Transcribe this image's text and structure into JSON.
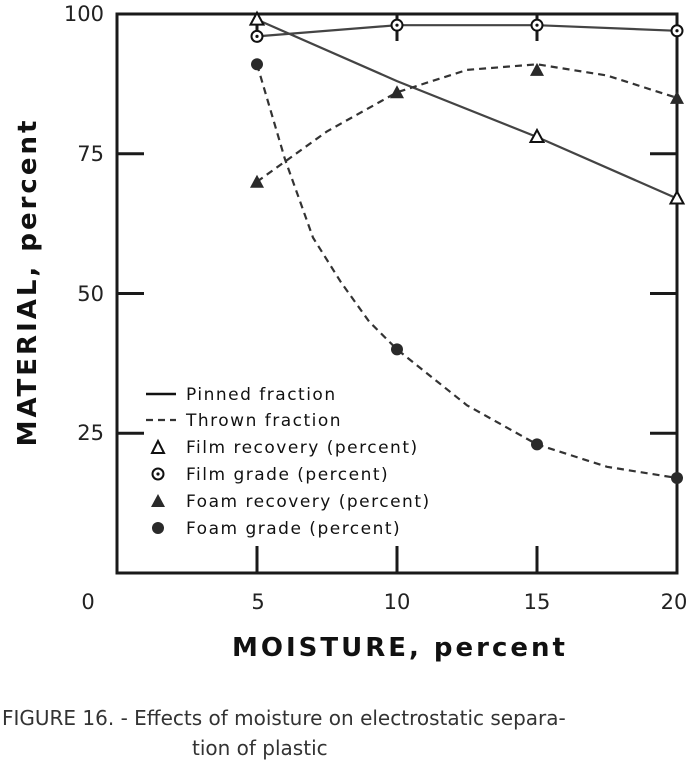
{
  "chart_data": {
    "type": "line",
    "xlabel": "MOISTURE, percent",
    "ylabel": "MATERIAL, percent",
    "xlim": [
      0,
      20
    ],
    "ylim": [
      0,
      100
    ],
    "x_ticks": [
      "0",
      "5",
      "10",
      "15",
      "20"
    ],
    "y_ticks": [
      "100",
      "75",
      "50",
      "25"
    ],
    "grid": false,
    "legend_position": "lower-left",
    "legend": [
      {
        "label": "Pinned fraction",
        "symbol": "solid-line"
      },
      {
        "label": "Thrown fraction",
        "symbol": "dashed-line"
      },
      {
        "label": "Film recovery (percent)",
        "symbol": "open-triangle"
      },
      {
        "label": "Film grade (percent)",
        "symbol": "dotted-circle"
      },
      {
        "label": "Foam recovery (percent)",
        "symbol": "filled-triangle"
      },
      {
        "label": "Foam grade (percent)",
        "symbol": "filled-circle"
      }
    ],
    "series": [
      {
        "name": "Film recovery (percent)",
        "line": "solid",
        "marker": "open-triangle",
        "x": [
          5,
          15,
          20
        ],
        "y": [
          99,
          78,
          67
        ],
        "curve_points": [
          [
            5,
            99
          ],
          [
            10,
            88
          ],
          [
            15,
            78
          ],
          [
            20,
            67
          ]
        ]
      },
      {
        "name": "Film grade (percent)",
        "line": "solid",
        "marker": "dotted-circle",
        "x": [
          5,
          10,
          15,
          20
        ],
        "y": [
          96,
          98,
          98,
          97
        ]
      },
      {
        "name": "Foam recovery (percent)",
        "line": "dashed",
        "marker": "filled-triangle",
        "x": [
          5,
          10,
          15,
          20
        ],
        "y": [
          70,
          86,
          90,
          85
        ],
        "curve_points": [
          [
            5,
            70
          ],
          [
            7.5,
            79
          ],
          [
            10,
            86
          ],
          [
            12.5,
            90
          ],
          [
            15,
            91
          ],
          [
            17.5,
            89
          ],
          [
            20,
            85
          ]
        ]
      },
      {
        "name": "Foam grade (percent)",
        "line": "dashed",
        "marker": "filled-circle",
        "x": [
          5,
          10,
          15,
          20
        ],
        "y": [
          91,
          40,
          23,
          17
        ],
        "curve_points": [
          [
            5,
            91
          ],
          [
            6,
            74
          ],
          [
            7,
            60
          ],
          [
            8,
            52
          ],
          [
            9,
            45
          ],
          [
            10,
            40
          ],
          [
            12.5,
            30
          ],
          [
            15,
            23
          ],
          [
            17.5,
            19
          ],
          [
            20,
            17
          ]
        ]
      }
    ]
  },
  "caption": {
    "line1": "FIGURE 16. - Effects of moisture on electrostatic separa-",
    "line2": "tion of plastic"
  }
}
